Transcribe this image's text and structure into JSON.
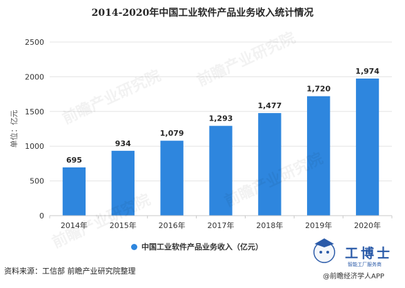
{
  "colors": {
    "bar": "#2e86de",
    "axis": "#c8c8c8",
    "grid": "#e3e3e3",
    "text": "#333333",
    "logo_accent": "#2a5aa8"
  },
  "title": "2014-2020年中国工业软件产品业务收入统计情况",
  "legend": {
    "label": "中国工业软件产品业务收入（亿元）"
  },
  "source": "资料来源：工信部 前瞻产业研究院整理",
  "watermark": "前瞻产业研究院",
  "logo": {
    "name": "工博士",
    "tagline": "智能工厂服务商",
    "caption": "@前瞻经济学人APP"
  },
  "chart_data": {
    "type": "bar",
    "title": "2014-2020年中国工业软件产品业务收入统计情况",
    "categories": [
      "2014年",
      "2015年",
      "2016年",
      "2017年",
      "2018年",
      "2019年",
      "2020年"
    ],
    "series": [
      {
        "name": "中国工业软件产品业务收入（亿元）",
        "values": [
          695,
          934,
          1079,
          1293,
          1477,
          1720,
          1974
        ]
      }
    ],
    "value_labels": [
      "695",
      "934",
      "1,079",
      "1,293",
      "1,477",
      "1,720",
      "1,974"
    ],
    "ylabel": "单位：亿元",
    "xlabel": "",
    "ylim": [
      0,
      2500
    ],
    "yticks": [
      0,
      500,
      1000,
      1500,
      2000,
      2500
    ],
    "grid": true,
    "legend_position": "bottom"
  }
}
